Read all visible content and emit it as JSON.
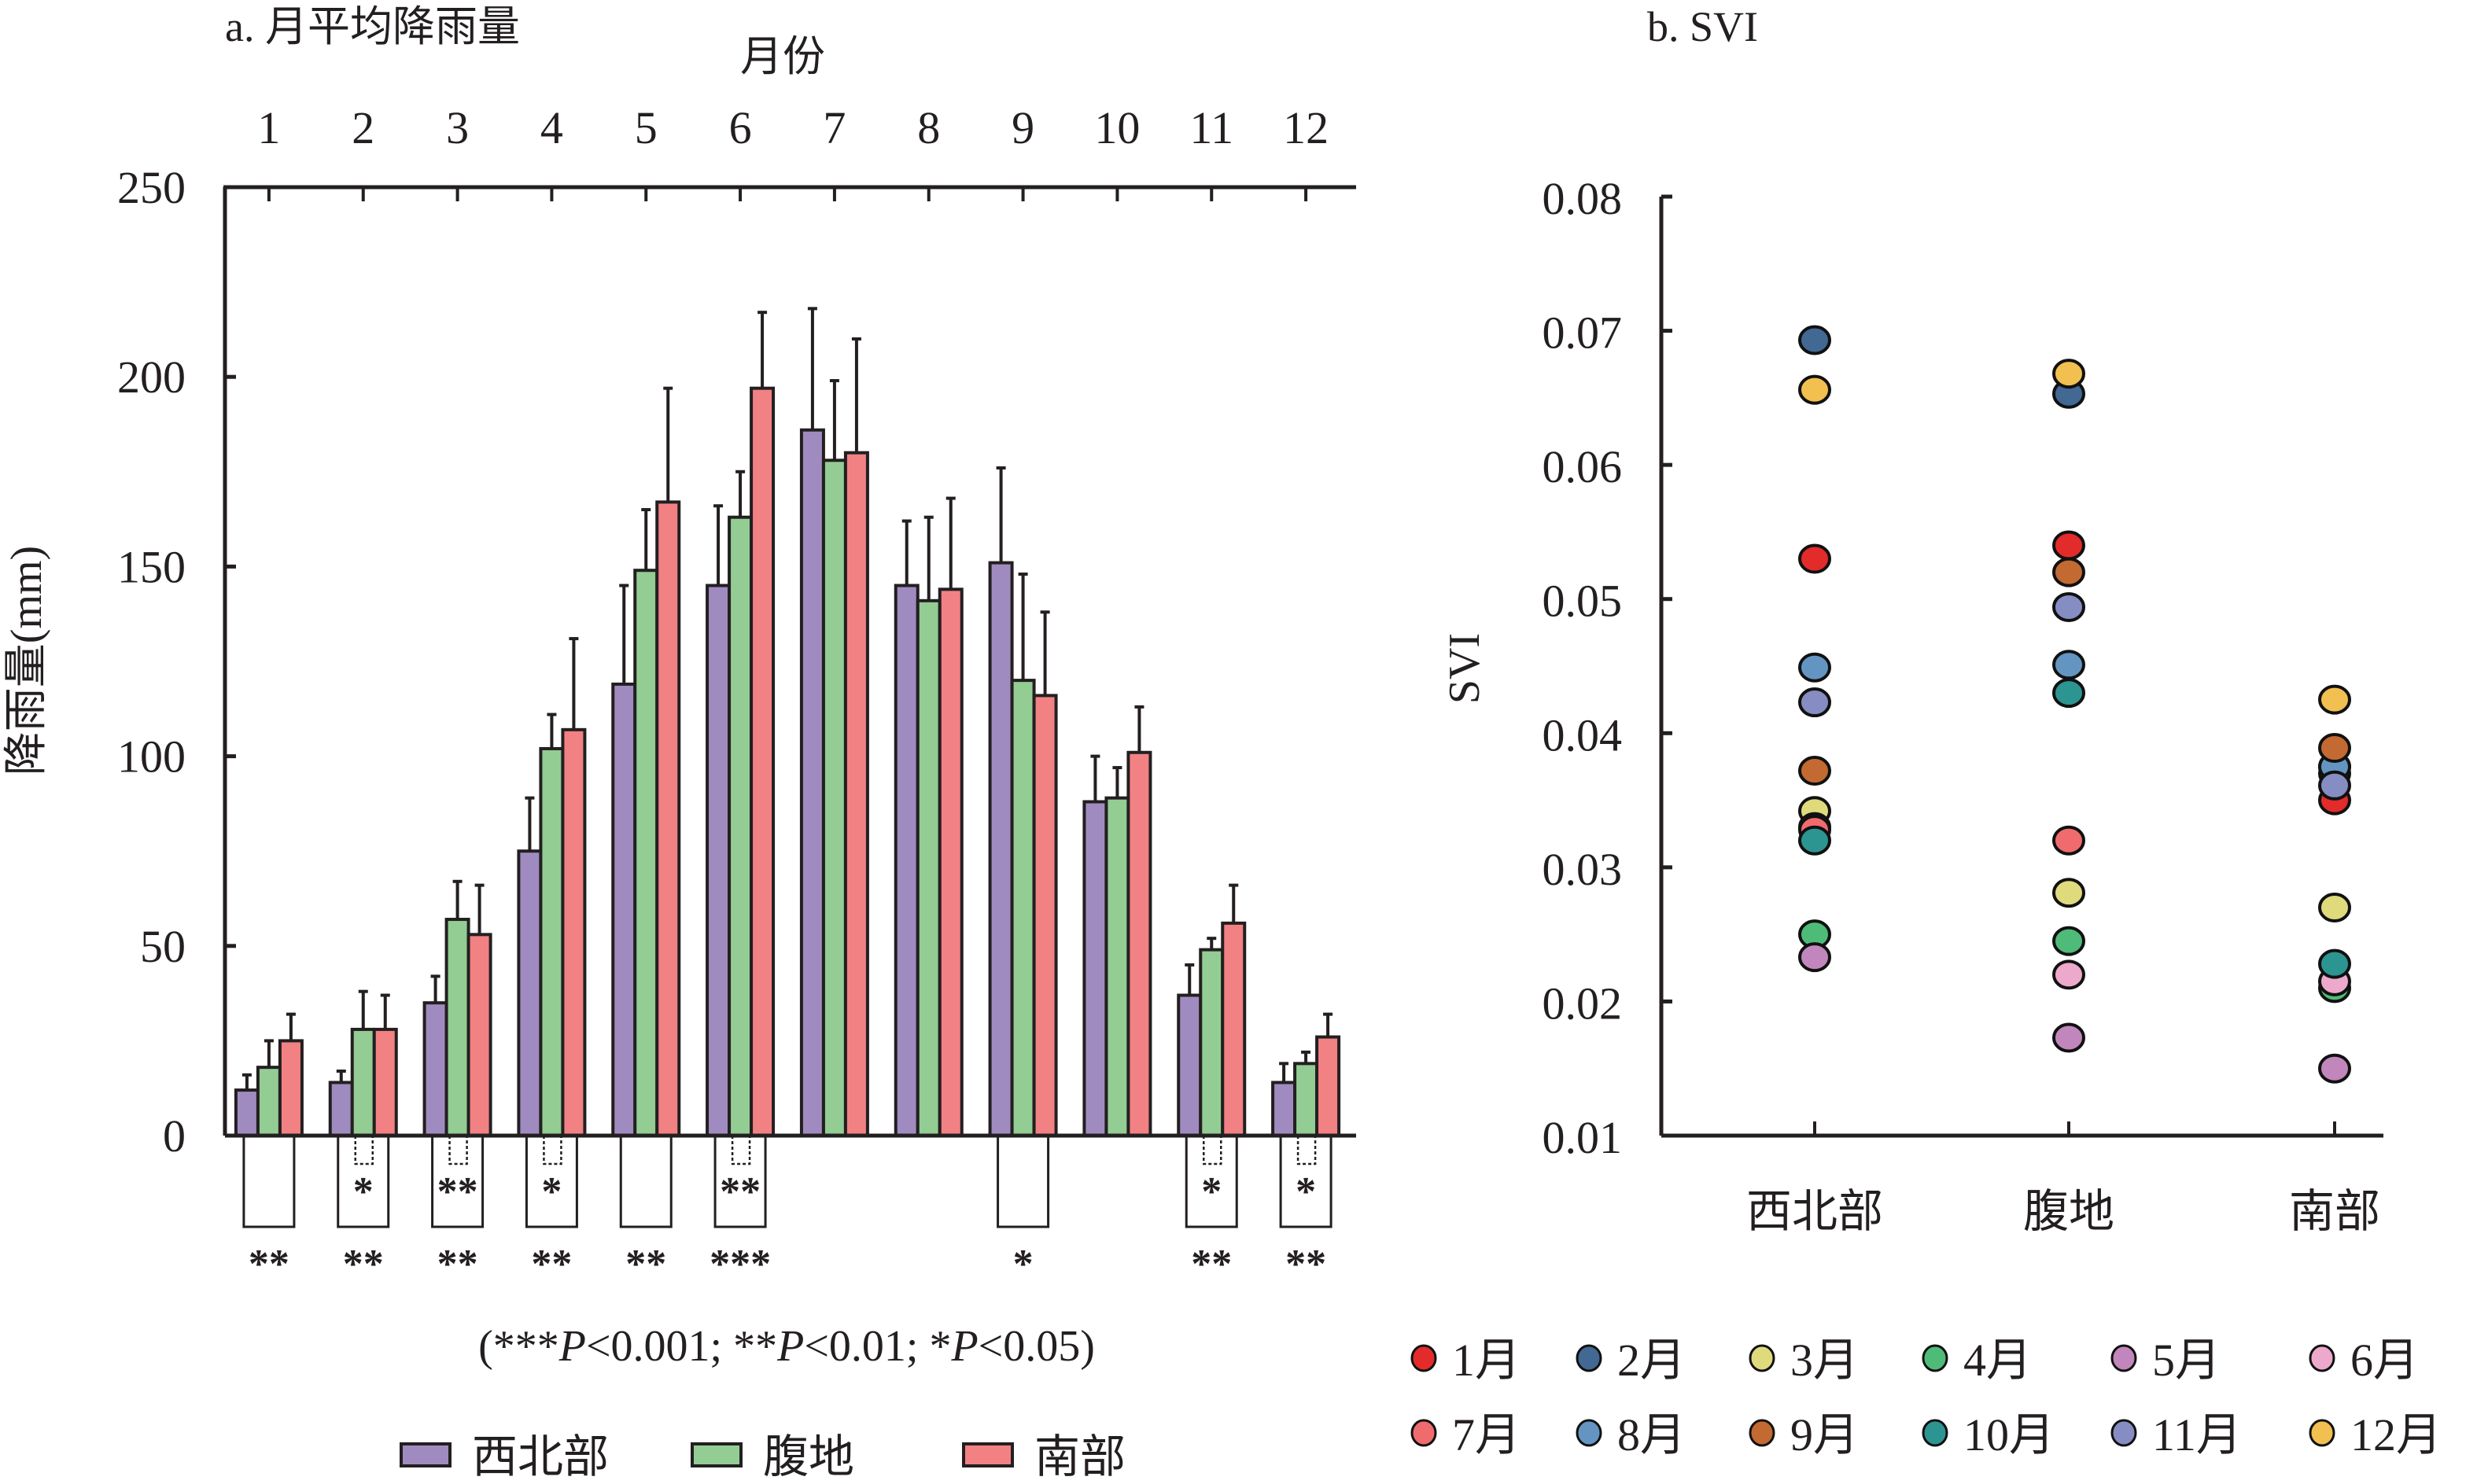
{
  "chart_data": [
    {
      "type": "bar",
      "title": "a. 月平均降雨量",
      "xlabel": "月份",
      "ylabel": "降雨量(mm)",
      "ylim": [
        0,
        250
      ],
      "yticks": [
        0,
        50,
        100,
        150,
        200,
        250
      ],
      "categories": [
        "1",
        "2",
        "3",
        "4",
        "5",
        "6",
        "7",
        "8",
        "9",
        "10",
        "11",
        "12"
      ],
      "series": [
        {
          "name": "西北部",
          "color": "#a08bc0",
          "values": [
            12,
            14,
            35,
            75,
            119,
            145,
            186,
            145,
            151,
            88,
            37,
            14
          ],
          "error_upper": [
            16,
            17,
            42,
            89,
            145,
            166,
            218,
            162,
            176,
            100,
            45,
            19
          ]
        },
        {
          "name": "腹地",
          "color": "#93cd93",
          "values": [
            18,
            28,
            57,
            102,
            149,
            163,
            178,
            141,
            120,
            89,
            49,
            19
          ],
          "error_upper": [
            25,
            38,
            67,
            111,
            165,
            175,
            199,
            163,
            148,
            97,
            52,
            22
          ]
        },
        {
          "name": "南部",
          "color": "#f28184",
          "values": [
            25,
            28,
            53,
            107,
            167,
            197,
            180,
            144,
            116,
            101,
            56,
            26
          ],
          "error_upper": [
            32,
            37,
            66,
            131,
            197,
            217,
            210,
            168,
            138,
            113,
            66,
            32
          ]
        }
      ],
      "significance_outer": [
        "**",
        "**",
        "**",
        "**",
        "**",
        "***",
        "",
        "",
        "*",
        "",
        "**",
        "**"
      ],
      "significance_inner": [
        "",
        "*",
        "**",
        "*",
        "",
        "**",
        "",
        "",
        "",
        "",
        "*",
        "*"
      ],
      "note": "(***P<0.001; **P<0.01; *P<0.05)",
      "note_parts": [
        "(***",
        "P",
        "<0.001; **",
        "P",
        "<0.01; *",
        "P",
        "<0.05)"
      ],
      "legend_position": "bottom"
    },
    {
      "type": "scatter",
      "title": "b. SVI",
      "ylabel": "SVI",
      "ylim": [
        0.01,
        0.08
      ],
      "yticks": [
        "0.01",
        "0.02",
        "0.03",
        "0.04",
        "0.05",
        "0.06",
        "0.07",
        "0.08"
      ],
      "categories": [
        "西北部",
        "腹地",
        "南部"
      ],
      "series": [
        {
          "name": "1月",
          "color": "#e32b2b",
          "values": [
            0.053,
            0.054,
            0.035
          ]
        },
        {
          "name": "2月",
          "color": "#426894",
          "values": [
            0.0693,
            0.0653,
            0.0375
          ]
        },
        {
          "name": "3月",
          "color": "#dfdb7d",
          "values": [
            0.0342,
            0.0281,
            0.027
          ]
        },
        {
          "name": "4月",
          "color": "#4fbb79",
          "values": [
            0.025,
            0.0245,
            0.021
          ]
        },
        {
          "name": "5月",
          "color": "#c187bd",
          "values": [
            0.0233,
            0.0173,
            0.015
          ]
        },
        {
          "name": "6月",
          "color": "#eda9cc",
          "values": [
            0.033,
            0.022,
            0.0215
          ]
        },
        {
          "name": "7月",
          "color": "#ef6b6d",
          "values": [
            0.0328,
            0.032,
            0.037
          ]
        },
        {
          "name": "8月",
          "color": "#6495c2",
          "values": [
            0.0449,
            0.0451,
            0.0375
          ]
        },
        {
          "name": "9月",
          "color": "#c26a31",
          "values": [
            0.0372,
            0.052,
            0.0389
          ]
        },
        {
          "name": "10月",
          "color": "#2c9592",
          "values": [
            0.032,
            0.043,
            0.0228
          ]
        },
        {
          "name": "11月",
          "color": "#868dc2",
          "values": [
            0.0423,
            0.0494,
            0.0361
          ]
        },
        {
          "name": "12月",
          "color": "#f2c050",
          "values": [
            0.0656,
            0.0668,
            0.0425
          ]
        }
      ],
      "legend_position": "bottom"
    }
  ]
}
